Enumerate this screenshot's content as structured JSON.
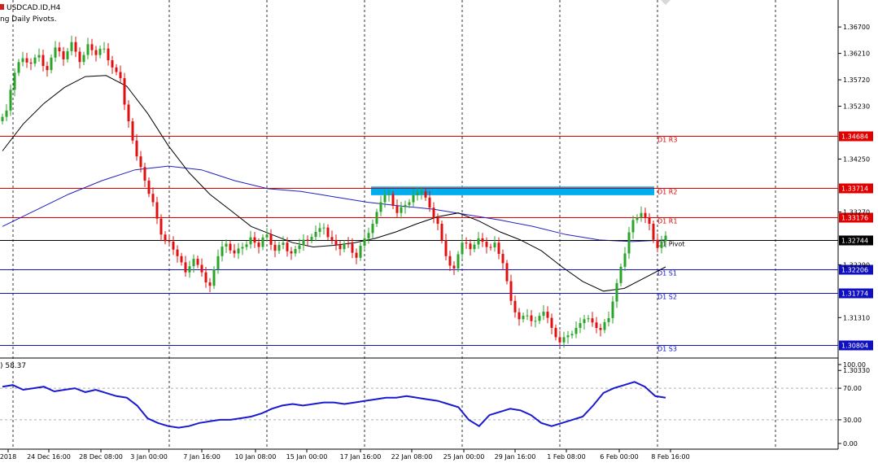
{
  "header": {
    "symbol_line": "USDCAD.ID,H4",
    "indicator_line": "ng Daily Pivots."
  },
  "rsi_panel": {
    "value_label": ") 58.37"
  },
  "chart_data": {
    "type": "candlestick",
    "symbol": "USDCAD.ID",
    "timeframe": "H4",
    "ylim": [
      1.3056,
      1.372
    ],
    "price_ticks": [
      "1.36700",
      "1.36210",
      "1.35720",
      "1.35230",
      "1.34250",
      "1.33270",
      "1.32290",
      "1.31310",
      "1.30330"
    ],
    "x_ticks": [
      "2018",
      "24 Dec 16:00",
      "28 Dec 08:00",
      "3 Jan 00:00",
      "7 Jan 16:00",
      "10 Jan 08:00",
      "15 Jan 00:00",
      "17 Jan 16:00",
      "22 Jan 08:00",
      "25 Jan 00:00",
      "29 Jan 16:00",
      "1 Feb 08:00",
      "6 Feb 00:00",
      "8 Feb 16:00"
    ],
    "pivots": [
      {
        "name": "D1 R3",
        "value": "1.34684",
        "color": "#e00000"
      },
      {
        "name": "D1 R2",
        "value": "1.33714",
        "color": "#e00000"
      },
      {
        "name": "D1 R1",
        "value": "1.33176",
        "color": "#e00000"
      },
      {
        "name": "D1 Pivot",
        "value": "1.32744",
        "color": "#000000"
      },
      {
        "name": "D1 S1",
        "value": "1.32206",
        "color": "#1010c0"
      },
      {
        "name": "D1 S2",
        "value": "1.31774",
        "color": "#1010c0"
      },
      {
        "name": "D1 S3",
        "value": "1.30804",
        "color": "#1010c0"
      }
    ],
    "current_price": "1.32744",
    "zone": {
      "from": 1.3358,
      "to": 1.3374,
      "color": "#00aeef"
    },
    "close_path": [
      1.3515,
      1.3585,
      1.3612,
      1.3602,
      1.3618,
      1.359,
      1.3632,
      1.361,
      1.3642,
      1.3605,
      1.3638,
      1.3618,
      1.363,
      1.3595,
      1.3575,
      1.3495,
      1.343,
      1.3385,
      1.3345,
      1.3285,
      1.3272,
      1.3245,
      1.3215,
      1.324,
      1.3215,
      1.319,
      1.3245,
      1.3268,
      1.325,
      1.3262,
      1.328,
      1.3262,
      1.3285,
      1.3255,
      1.327,
      1.325,
      1.3265,
      1.3275,
      1.329,
      1.3298,
      1.3275,
      1.3258,
      1.3268,
      1.3242,
      1.3278,
      1.3305,
      1.3345,
      1.336,
      1.3325,
      1.334,
      1.3358,
      1.3365,
      1.3335,
      1.3305,
      1.3245,
      1.3222,
      1.327,
      1.3258,
      1.3278,
      1.3262,
      1.327,
      1.3232,
      1.3162,
      1.3128,
      1.3135,
      1.3125,
      1.3142,
      1.3112,
      1.3085,
      1.3098,
      1.3112,
      1.3128,
      1.3122,
      1.3108,
      1.313,
      1.3195,
      1.325,
      1.3312,
      1.3325,
      1.3305,
      1.326,
      1.3283
    ],
    "ma_fast": [
      1.344,
      1.349,
      1.3528,
      1.3558,
      1.3578,
      1.358,
      1.356,
      1.351,
      1.345,
      1.34,
      1.336,
      1.333,
      1.33,
      1.3285,
      1.327,
      1.3262,
      1.3265,
      1.327,
      1.3278,
      1.329,
      1.3305,
      1.3318,
      1.3325,
      1.331,
      1.329,
      1.3275,
      1.3255,
      1.3225,
      1.3198,
      1.318,
      1.3185,
      1.3205,
      1.3225
    ],
    "ma_slow": [
      1.33,
      1.333,
      1.336,
      1.3385,
      1.3405,
      1.3412,
      1.3405,
      1.3385,
      1.337,
      1.3365,
      1.3355,
      1.3345,
      1.3338,
      1.3332,
      1.3322,
      1.3312,
      1.33,
      1.3285,
      1.3275,
      1.3272,
      1.3275
    ],
    "rsi": {
      "label": "RSI",
      "value": "58.37",
      "ylim": [
        0,
        100
      ],
      "ticks": [
        "100.00",
        "70.00",
        "30.00",
        "0.00"
      ],
      "levels": [
        70,
        30
      ],
      "values": [
        72,
        74,
        68,
        70,
        72,
        66,
        68,
        70,
        65,
        68,
        64,
        60,
        58,
        48,
        32,
        26,
        22,
        20,
        22,
        26,
        28,
        30,
        30,
        32,
        34,
        38,
        44,
        48,
        50,
        48,
        50,
        52,
        52,
        50,
        52,
        54,
        56,
        58,
        58,
        60,
        58,
        56,
        54,
        50,
        46,
        30,
        22,
        36,
        40,
        44,
        42,
        36,
        26,
        22,
        26,
        30,
        34,
        48,
        64,
        70,
        74,
        78,
        72,
        60,
        58
      ]
    }
  }
}
